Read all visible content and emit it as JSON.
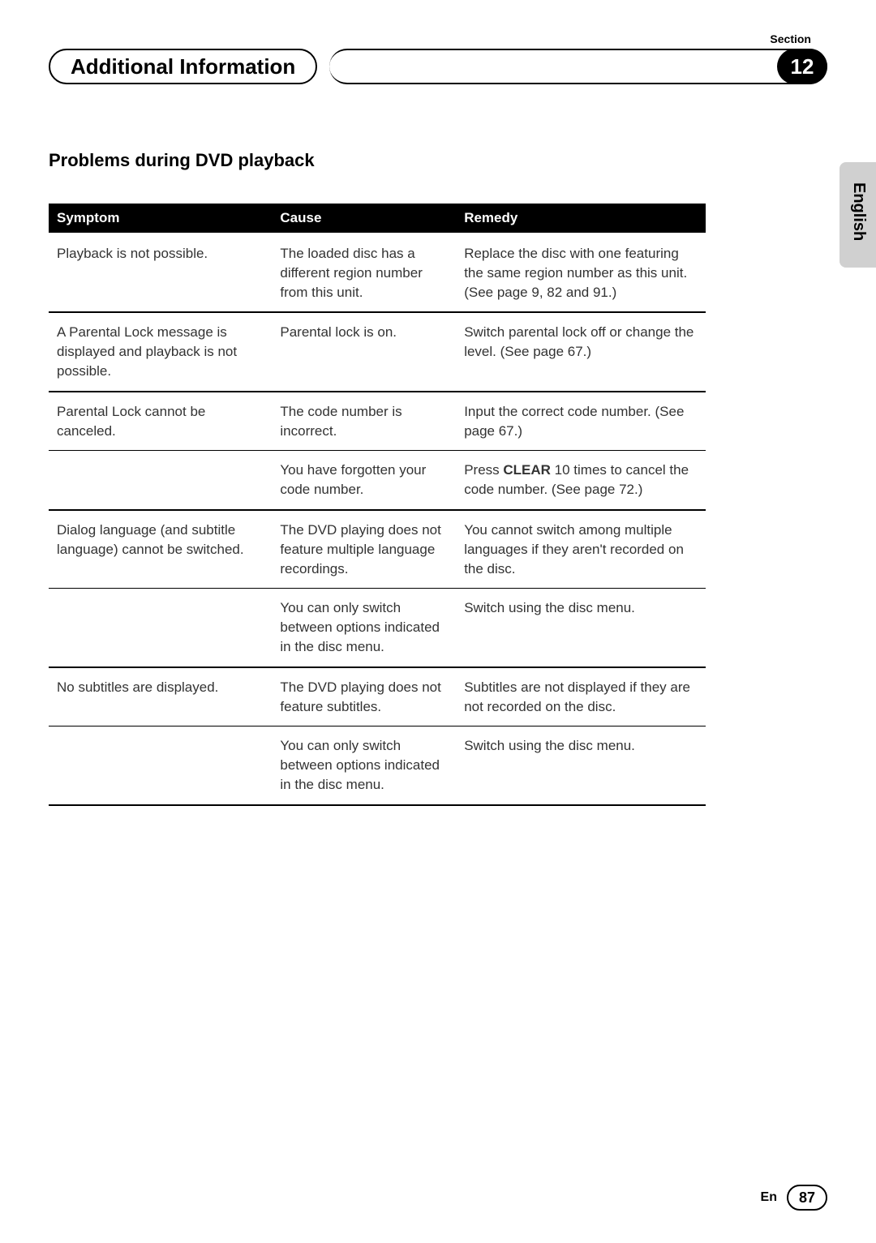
{
  "header": {
    "section_label": "Section",
    "title": "Additional Information",
    "section_number": "12"
  },
  "lang_tab": "English",
  "content": {
    "subtitle": "Problems during DVD playback",
    "table": {
      "headers": {
        "symptom": "Symptom",
        "cause": "Cause",
        "remedy": "Remedy"
      },
      "rows": [
        {
          "symptom": "Playback is not possible.",
          "cause": "The loaded disc has a different region number from this unit.",
          "remedy": "Replace the disc with one featuring the same region number as this unit. (See page 9, 82 and 91.)",
          "group_end": true
        },
        {
          "symptom": "A Parental Lock message is displayed and playback is not possible.",
          "cause": "Parental lock is on.",
          "remedy": "Switch parental lock off or change the level. (See page 67.)",
          "group_end": true
        },
        {
          "symptom": "Parental Lock cannot be canceled.",
          "cause": "The code number is incorrect.",
          "remedy": "Input the correct code number. (See page 67.)",
          "sub_end": true
        },
        {
          "symptom": "",
          "cause": "You have forgotten your code number.",
          "remedy_parts": [
            "Press ",
            "CLEAR",
            " 10 times to cancel the code number. (See page 72.)"
          ],
          "group_end": true
        },
        {
          "symptom": "Dialog language (and subtitle language) cannot be switched.",
          "cause": "The DVD playing does not feature multiple language recordings.",
          "remedy": "You cannot switch among multiple languages if they aren't recorded on the disc.",
          "sub_end": true
        },
        {
          "symptom": "",
          "cause": "You can only switch between options indicated in the disc menu.",
          "remedy": "Switch using the disc menu.",
          "group_end": true
        },
        {
          "symptom": "No subtitles are displayed.",
          "cause": "The DVD playing does not feature subtitles.",
          "remedy": "Subtitles are not displayed if they are not recorded on the disc.",
          "sub_end": true
        },
        {
          "symptom": "",
          "cause": "You can only switch between options indicated in the disc menu.",
          "remedy": "Switch using the disc menu.",
          "group_end": true
        }
      ]
    }
  },
  "footer": {
    "lang_code": "En",
    "page_number": "87"
  },
  "colors": {
    "header_bg": "#000000",
    "header_fg": "#ffffff",
    "tab_bg": "#d0d0d0",
    "text": "#333333"
  }
}
